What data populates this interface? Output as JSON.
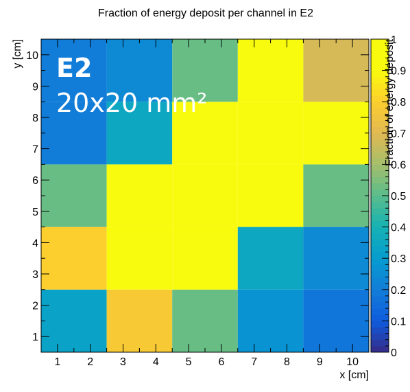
{
  "chart_data": {
    "type": "heatmap",
    "title": "Fraction of energy deposit per channel in E2",
    "xlabel": "x [cm]",
    "ylabel": "y [cm]",
    "zlabel": "Fraction of energy deposit",
    "x_ticks": [
      "1",
      "2",
      "3",
      "4",
      "5",
      "6",
      "7",
      "8",
      "9",
      "10"
    ],
    "y_ticks": [
      "1",
      "2",
      "3",
      "4",
      "5",
      "6",
      "7",
      "8",
      "9",
      "10"
    ],
    "z_ticks": [
      "0",
      "0.1",
      "0.2",
      "0.3",
      "0.4",
      "0.5",
      "0.6",
      "0.7",
      "0.8",
      "0.9",
      "1"
    ],
    "xlim": [
      0.5,
      10.5
    ],
    "ylim": [
      0.5,
      10.5
    ],
    "zlim": [
      0,
      1
    ],
    "bin_width_cm": 2,
    "x_bin_centers": [
      1.5,
      3.5,
      5.5,
      7.5,
      9.5
    ],
    "y_bin_centers": [
      1.5,
      3.5,
      5.5,
      7.5,
      9.5
    ],
    "values_rows_bottom_to_top": [
      [
        0.33,
        0.78,
        0.52,
        0.27,
        0.18
      ],
      [
        0.8,
        1.0,
        1.0,
        0.35,
        0.24
      ],
      [
        0.52,
        1.0,
        1.0,
        1.0,
        0.52
      ],
      [
        0.2,
        0.35,
        1.0,
        1.0,
        1.0
      ],
      [
        0.2,
        0.24,
        0.52,
        1.0,
        0.68
      ]
    ],
    "colormap": "parula",
    "grid": false
  },
  "annotation": {
    "label": "E2",
    "size_text": "20x20 mm²"
  }
}
